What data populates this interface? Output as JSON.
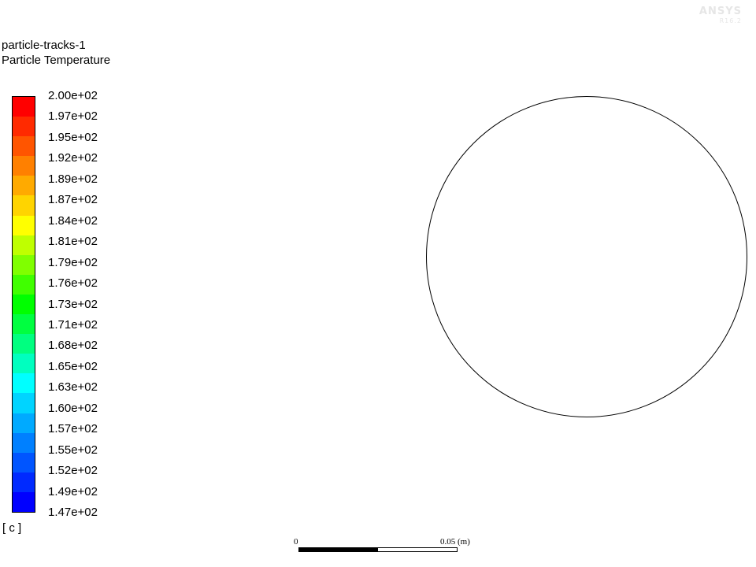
{
  "header": {
    "object_name": "particle-tracks-1",
    "variable": "Particle Temperature"
  },
  "legend": {
    "units": "[ c ]",
    "labels": [
      "2.00e+02",
      "1.97e+02",
      "1.95e+02",
      "1.92e+02",
      "1.89e+02",
      "1.87e+02",
      "1.84e+02",
      "1.81e+02",
      "1.79e+02",
      "1.76e+02",
      "1.73e+02",
      "1.71e+02",
      "1.68e+02",
      "1.65e+02",
      "1.63e+02",
      "1.60e+02",
      "1.57e+02",
      "1.55e+02",
      "1.52e+02",
      "1.49e+02",
      "1.47e+02"
    ],
    "colors": [
      "#ff0000",
      "#ff2a00",
      "#ff5500",
      "#ff8000",
      "#ffaa00",
      "#ffd400",
      "#ffff00",
      "#bfff00",
      "#80ff00",
      "#40ff00",
      "#00ff00",
      "#00ff40",
      "#00ff80",
      "#00ffbf",
      "#00ffff",
      "#00d4ff",
      "#00aaff",
      "#0080ff",
      "#0055ff",
      "#002aff",
      "#0000ff"
    ]
  },
  "scale_bar": {
    "start_label": "0",
    "end_label": "0.05 (m)"
  },
  "logo": {
    "line1": "ANSYS",
    "line2": "R16.2"
  }
}
